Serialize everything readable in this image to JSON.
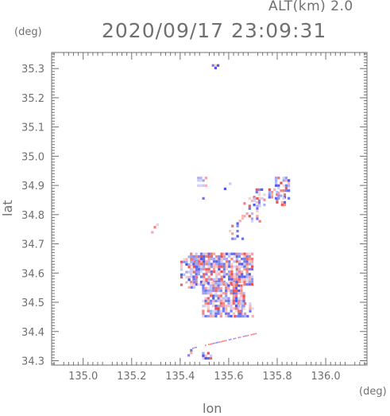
{
  "header": {
    "alt_label": "ALT(km) 2.0",
    "datetime": "2020/09/17 23:09:31"
  },
  "chart_data": {
    "type": "scatter",
    "title": "2020/09/17 23:09:31",
    "xlabel": "lon",
    "ylabel": "lat",
    "x_unit": "(deg)",
    "y_unit": "(deg)",
    "xlim": [
      134.87,
      136.17
    ],
    "ylim": [
      34.285,
      35.355
    ],
    "x_ticks": [
      135.0,
      135.2,
      135.4,
      135.6,
      135.8,
      136.0
    ],
    "x_tick_labels": [
      "135.0",
      "135.2",
      "135.4",
      "135.6",
      "135.8",
      "136.0"
    ],
    "y_ticks": [
      34.3,
      34.4,
      34.5,
      34.6,
      34.7,
      34.8,
      34.9,
      35.0,
      35.1,
      35.2,
      35.3
    ],
    "y_tick_labels": [
      "34.3",
      "34.4",
      "34.5",
      "34.6",
      "34.7",
      "34.8",
      "34.9",
      "35.0",
      "35.1",
      "35.2",
      "35.3"
    ],
    "grid": false,
    "colors": {
      "positive": "#e83c3c",
      "negative": "#3c46e6",
      "axis": "#707070"
    },
    "regions": [
      {
        "lon": [
          135.44,
          135.7
        ],
        "lat": [
          34.56,
          34.67
        ],
        "density": 0.8
      },
      {
        "lon": [
          135.49,
          135.66
        ],
        "lat": [
          34.45,
          34.57
        ],
        "density": 0.78
      },
      {
        "lon": [
          135.4,
          135.47
        ],
        "lat": [
          34.55,
          34.66
        ],
        "density": 0.35
      },
      {
        "lon": [
          135.61,
          135.7
        ],
        "lat": [
          34.45,
          34.5
        ],
        "density": 0.35
      },
      {
        "lon": [
          135.7,
          135.83
        ],
        "lat": [
          34.83,
          34.89
        ],
        "density": 0.45
      },
      {
        "lon": [
          135.79,
          135.85
        ],
        "lat": [
          34.86,
          34.93
        ],
        "density": 0.5
      },
      {
        "lon": [
          135.66,
          135.74
        ],
        "lat": [
          34.78,
          34.86
        ],
        "density": 0.35
      },
      {
        "lon": [
          135.6,
          135.66
        ],
        "lat": [
          34.72,
          34.8
        ],
        "density": 0.15
      },
      {
        "lon": [
          135.48,
          135.56
        ],
        "lat": [
          34.84,
          34.86
        ],
        "density": 0.12
      },
      {
        "lon": [
          135.47,
          135.51
        ],
        "lat": [
          34.9,
          34.93
        ],
        "density": 0.5
      },
      {
        "lon": [
          135.58,
          135.61
        ],
        "lat": [
          34.89,
          34.91
        ],
        "density": 0.4
      },
      {
        "lon": [
          135.28,
          135.31
        ],
        "lat": [
          34.73,
          34.77
        ],
        "density": 0.35
      },
      {
        "lon": [
          135.43,
          135.46
        ],
        "lat": [
          34.32,
          34.34
        ],
        "density": 0.5
      },
      {
        "lon": [
          135.49,
          135.53
        ],
        "lat": [
          34.31,
          34.33
        ],
        "density": 0.4
      },
      {
        "lon": [
          135.53,
          135.57
        ],
        "lat": [
          35.305,
          35.315
        ],
        "density": 0.5
      }
    ],
    "trail": {
      "lon": [
        135.45,
        135.71
      ],
      "lat": [
        34.345,
        34.395
      ]
    }
  }
}
